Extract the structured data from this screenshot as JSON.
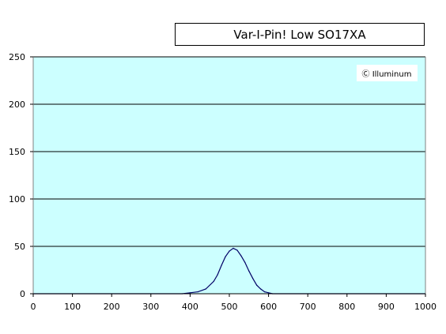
{
  "chart_data": {
    "type": "line",
    "title": "Var-I-Pin! Low SO17XA",
    "watermark": "Ⓒ Illuminum",
    "xlabel": "",
    "ylabel": "",
    "xlim": [
      0,
      1000
    ],
    "ylim": [
      0,
      250
    ],
    "x_ticks": [
      "0",
      "100",
      "200",
      "300",
      "400",
      "500",
      "600",
      "700",
      "800",
      "900",
      "1000"
    ],
    "y_ticks": [
      "0",
      "50",
      "100",
      "150",
      "200",
      "250"
    ],
    "grid": "horizontal",
    "colors": {
      "plot_background": "#ccffff",
      "line": "#000066"
    },
    "series": [
      {
        "x": [
          0,
          380,
          400,
          420,
          440,
          460,
          470,
          480,
          490,
          500,
          510,
          520,
          530,
          540,
          550,
          560,
          570,
          580,
          590,
          600,
          610,
          1000
        ],
        "y": [
          0,
          0,
          1,
          2,
          5,
          13,
          20,
          30,
          39,
          45,
          48,
          46,
          40,
          33,
          24,
          16,
          9,
          5,
          2,
          1,
          0,
          0
        ]
      }
    ]
  }
}
